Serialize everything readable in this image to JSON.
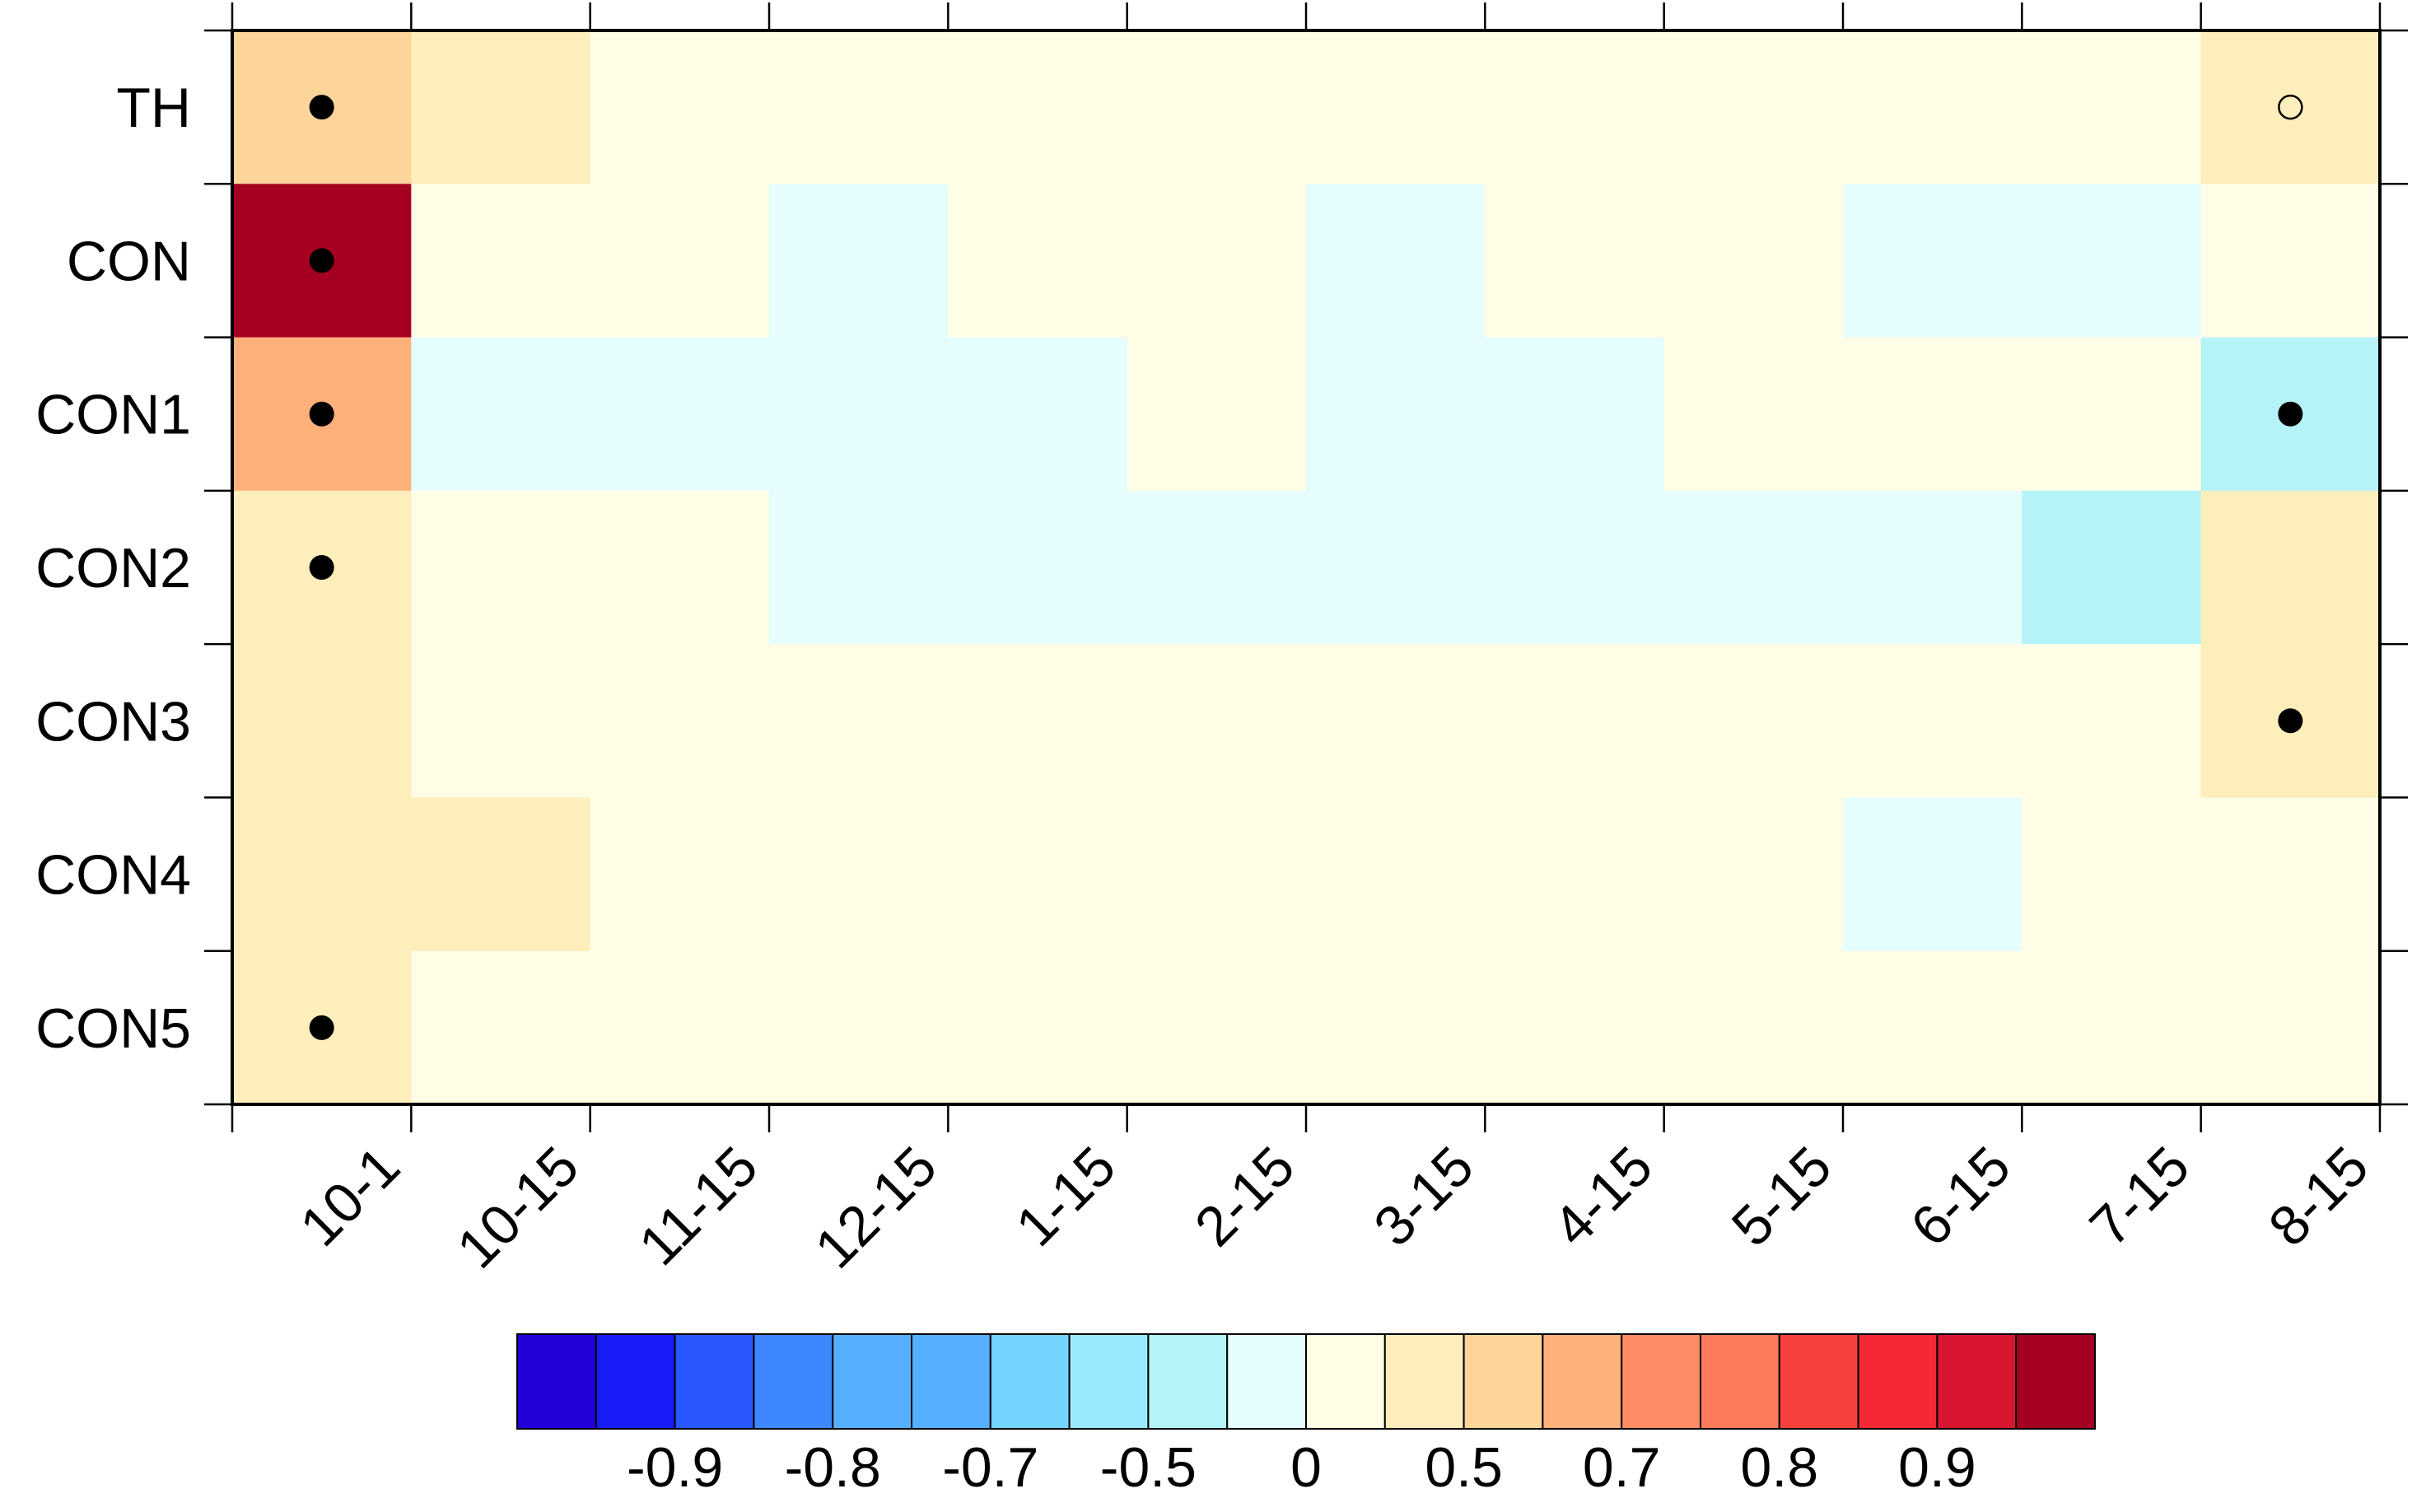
{
  "chart_data": {
    "type": "heatmap",
    "x_categories": [
      "10-1",
      "10-15",
      "11-15",
      "12-15",
      "1-15",
      "2-15",
      "3-15",
      "4-15",
      "5-15",
      "6-15",
      "7-15",
      "8-15"
    ],
    "y_categories": [
      "TH",
      "CON",
      "CON1",
      "CON2",
      "CON3",
      "CON4",
      "CON5"
    ],
    "values": [
      [
        0.55,
        0.3,
        0.1,
        0.1,
        0.1,
        0.1,
        0.1,
        0.1,
        0.1,
        0.1,
        0.1,
        0.3
      ],
      [
        0.97,
        0.1,
        0.1,
        -0.1,
        0.1,
        0.1,
        -0.1,
        0.1,
        0.1,
        -0.1,
        -0.1,
        0.1
      ],
      [
        0.65,
        -0.1,
        -0.1,
        -0.1,
        -0.1,
        0.1,
        -0.1,
        -0.1,
        0.1,
        0.1,
        0.1,
        -0.3
      ],
      [
        0.3,
        0.1,
        0.1,
        -0.1,
        -0.1,
        -0.1,
        -0.1,
        -0.1,
        -0.1,
        -0.1,
        -0.3,
        0.3
      ],
      [
        0.3,
        0.1,
        0.1,
        0.1,
        0.1,
        0.1,
        0.1,
        0.1,
        0.1,
        0.1,
        0.1,
        0.3
      ],
      [
        0.3,
        0.3,
        0.1,
        0.1,
        0.1,
        0.1,
        0.1,
        0.1,
        0.1,
        -0.1,
        0.1,
        0.1
      ],
      [
        0.3,
        0.1,
        0.1,
        0.1,
        0.1,
        0.1,
        0.1,
        0.1,
        0.1,
        0.1,
        0.1,
        0.1
      ]
    ],
    "filled_dots": [
      [
        0,
        0
      ],
      [
        1,
        0
      ],
      [
        2,
        0
      ],
      [
        3,
        0
      ],
      [
        6,
        0
      ],
      [
        2,
        11
      ],
      [
        4,
        11
      ]
    ],
    "open_dots": [
      [
        0,
        11
      ]
    ],
    "colorbar_ticks": [
      -0.9,
      -0.8,
      -0.7,
      -0.5,
      0,
      0.5,
      0.7,
      0.8,
      0.9
    ],
    "colors": [
      "#2400d8",
      "#181cf7",
      "#2857ff",
      "#3d87ff",
      "#56b0ff",
      "#56b0ff",
      "#75d3ff",
      "#99eaff",
      "#b6f3f9",
      "#e6fdfd",
      "#fffde6",
      "#fdeebb",
      "#fdd49a",
      "#fdb07a",
      "#fd8c64",
      "#fd7a5a",
      "#f7403e",
      "#f72835",
      "#d8152f",
      "#a50021"
    ]
  }
}
